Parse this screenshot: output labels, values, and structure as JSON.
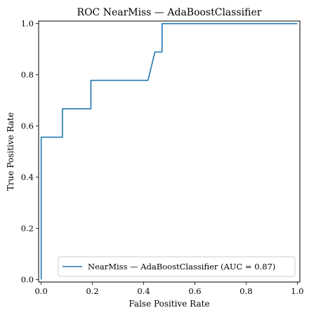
{
  "chart_data": {
    "type": "line",
    "title": "ROC NearMiss — AdaBoostClassifier",
    "xlabel": "False Positive Rate",
    "ylabel": "True Positive Rate",
    "xlim": [
      -0.01,
      1.01
    ],
    "ylim": [
      -0.01,
      1.01
    ],
    "xticks": [
      0.0,
      0.2,
      0.4,
      0.6,
      0.8,
      1.0
    ],
    "yticks": [
      0.0,
      0.2,
      0.4,
      0.6,
      0.8,
      1.0
    ],
    "xtick_labels": [
      "0.0",
      "0.2",
      "0.4",
      "0.6",
      "0.8",
      "1.0"
    ],
    "ytick_labels": [
      "0.0",
      "0.2",
      "0.4",
      "0.6",
      "0.8",
      "1.0"
    ],
    "grid": false,
    "legend_position": "lower-right",
    "series": [
      {
        "name": "NearMiss — AdaBoostClassifier (AUC = 0.87)",
        "color": "#1f77b4",
        "x": [
          0.0,
          0.0,
          0.0,
          0.083,
          0.083,
          0.194,
          0.194,
          0.417,
          0.444,
          0.472,
          0.472,
          1.0
        ],
        "y": [
          0.0,
          0.0,
          0.556,
          0.556,
          0.667,
          0.667,
          0.778,
          0.778,
          0.889,
          0.889,
          1.0,
          1.0
        ]
      }
    ]
  }
}
